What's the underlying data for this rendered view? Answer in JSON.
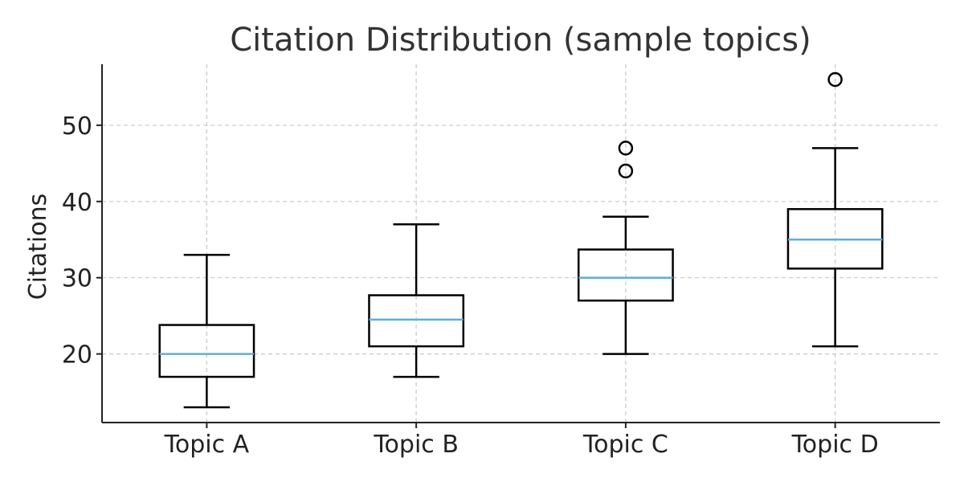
{
  "chart_data": {
    "type": "box",
    "title": "Citation Distribution (sample topics)",
    "xlabel": "",
    "ylabel": "Citations",
    "ylim": [
      11,
      58
    ],
    "yticks": [
      20,
      30,
      40,
      50
    ],
    "grid": true,
    "median_color": "#5dade2",
    "box_color": "#000000",
    "categories": [
      "Topic A",
      "Topic B",
      "Topic C",
      "Topic D"
    ],
    "boxes": [
      {
        "category": "Topic A",
        "whisker_low": 13,
        "q1": 17,
        "median": 20,
        "q3": 23.8,
        "whisker_high": 33,
        "outliers": []
      },
      {
        "category": "Topic B",
        "whisker_low": 17,
        "q1": 21,
        "median": 24.5,
        "q3": 27.7,
        "whisker_high": 37,
        "outliers": []
      },
      {
        "category": "Topic C",
        "whisker_low": 20,
        "q1": 27,
        "median": 30,
        "q3": 33.7,
        "whisker_high": 38,
        "outliers": [
          44,
          47
        ]
      },
      {
        "category": "Topic D",
        "whisker_low": 21,
        "q1": 31.2,
        "median": 35,
        "q3": 39,
        "whisker_high": 47,
        "outliers": [
          56
        ]
      }
    ]
  }
}
